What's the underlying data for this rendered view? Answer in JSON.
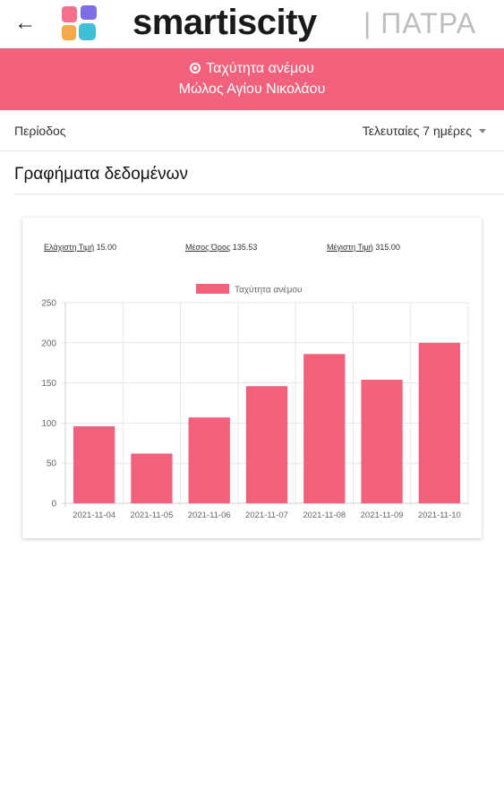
{
  "header": {
    "brand": "smartiscity",
    "city": "| ΠΑΤΡΑ"
  },
  "banner": {
    "metric": "Ταχύτητα ανέμου",
    "location": "Μώλος Αγίου Νικολάου"
  },
  "period": {
    "label": "Περίοδος",
    "selected": "Τελευταίες 7 ημέρες"
  },
  "section": {
    "title": "Γραφήματα δεδομένων"
  },
  "stats": {
    "min_label": "Ελάχιστη Τιμή",
    "min_value": "15.00",
    "avg_label": "Μέσος Όρος",
    "avg_value": "135.53",
    "max_label": "Μέγιστη Τιμή",
    "max_value": "315.00"
  },
  "colors": {
    "accent": "#f2617c"
  },
  "icons": {
    "back": "arrow-left-icon",
    "location": "location-pin-icon",
    "dropdown": "caret-down-icon"
  },
  "chart_data": {
    "type": "bar",
    "categories": [
      "2021-11-04",
      "2021-11-05",
      "2021-11-06",
      "2021-11-07",
      "2021-11-08",
      "2021-11-09",
      "2021-11-10"
    ],
    "series": [
      {
        "name": "Ταχύτητα ανέμου",
        "values": [
          96,
          62,
          107,
          146,
          186,
          154,
          200
        ]
      }
    ],
    "ylim": [
      0,
      250
    ],
    "yticks": [
      0,
      50,
      100,
      150,
      200,
      250
    ],
    "grid": true,
    "legend": "top"
  }
}
